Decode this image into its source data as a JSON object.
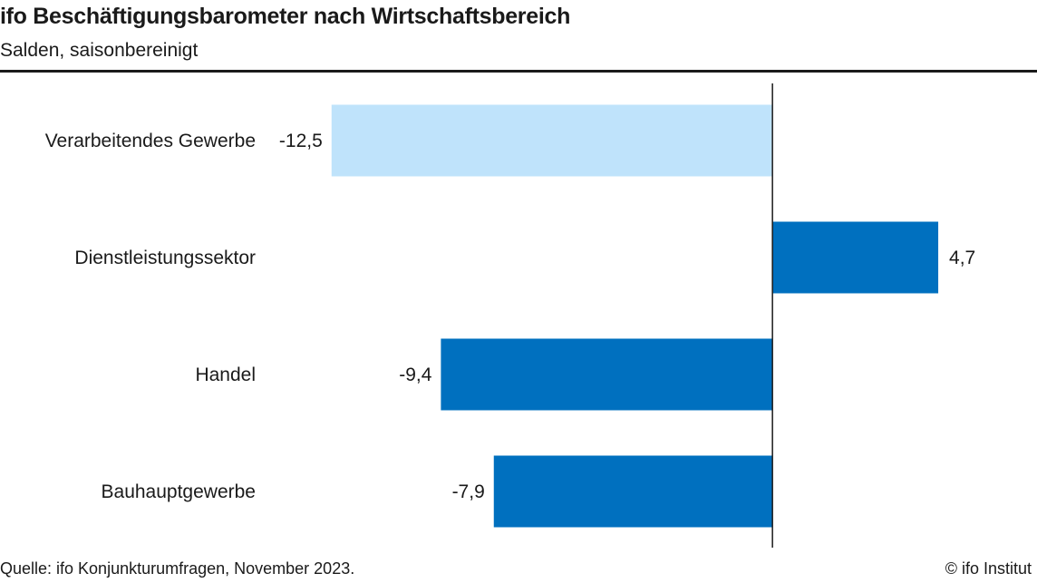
{
  "header": {
    "title": "ifo Beschäftigungsbarometer nach Wirtschaftsbereich",
    "subtitle": "Salden, saisonbereinigt"
  },
  "footer": {
    "source": "Quelle: ifo Konjunkturumfragen, November 2023.",
    "copyright": "© ifo Institut"
  },
  "chart_data": {
    "type": "bar",
    "orientation": "horizontal",
    "title": "ifo Beschäftigungsbarometer nach Wirtschaftsbereich",
    "subtitle": "Salden, saisonbereinigt",
    "categories": [
      "Verarbeitendes Gewerbe",
      "Dienstleistungssektor",
      "Handel",
      "Bauhauptgewerbe"
    ],
    "values": [
      -12.5,
      4.7,
      -9.4,
      -7.9
    ],
    "value_labels": [
      "-12,5",
      "4,7",
      "-9,4",
      "-7,9"
    ],
    "colors": [
      "#bfe3fb",
      "#0070bf",
      "#0070bf",
      "#0070bf"
    ],
    "xlim": [
      -21.9,
      7.5
    ],
    "grid": false,
    "legend": "none"
  }
}
